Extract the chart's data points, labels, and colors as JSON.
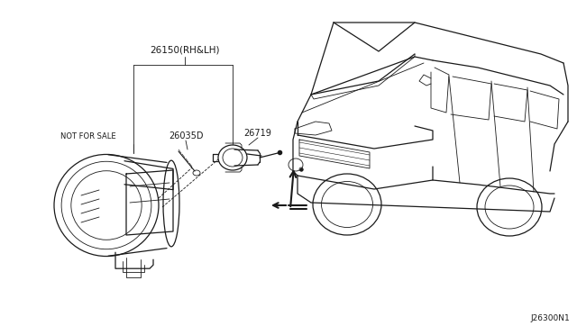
{
  "bg_color": "#ffffff",
  "line_color": "#1a1a1a",
  "figsize": [
    6.4,
    3.72
  ],
  "dpi": 100,
  "part_numbers": {
    "main": "26150(RH&LH)",
    "screw": "26035D",
    "bulb": "26719",
    "not_for_sale": "NOT FOR SALE"
  },
  "diagram_code": "J26300N1",
  "gray": "#888888"
}
